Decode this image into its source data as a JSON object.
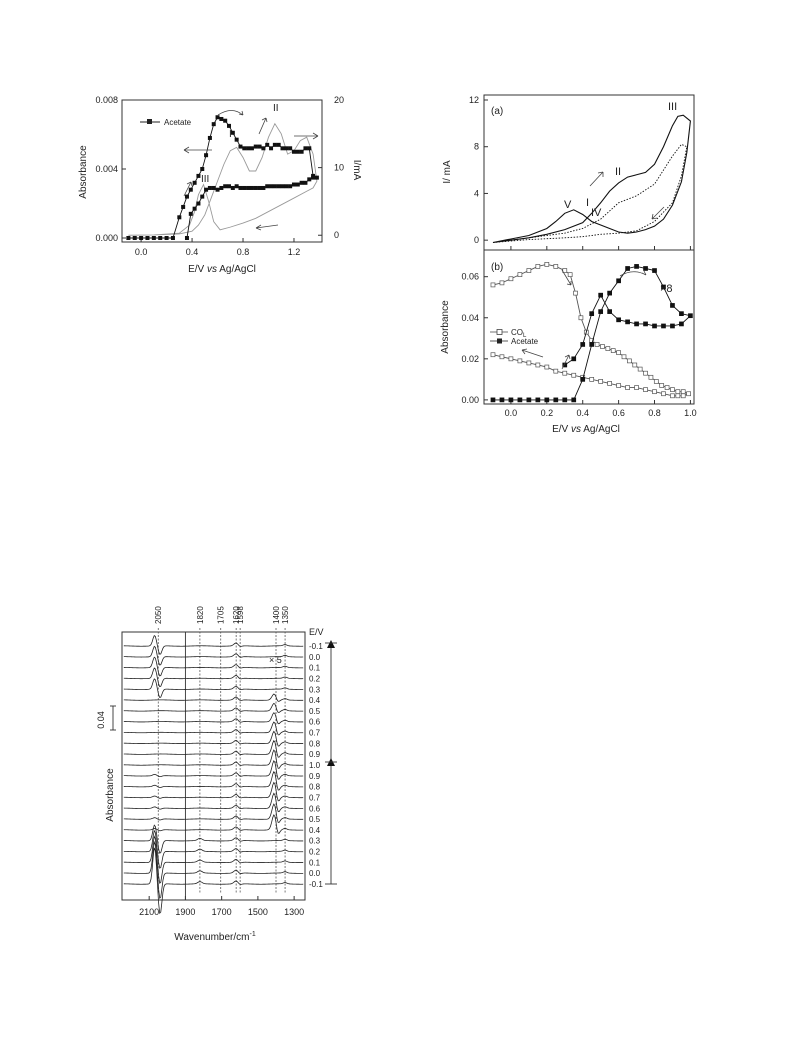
{
  "chart_data": [
    {
      "id": "fig1",
      "type": "line",
      "xlabel_pre": "E/V ",
      "xlabel_em": "vs",
      "xlabel_post": " Ag/AgCl",
      "ylabel": "Absorbance",
      "y2label": "I/mA",
      "xlim": [
        -0.15,
        1.42
      ],
      "ylim": [
        0,
        0.008
      ],
      "y2lim": [
        -1,
        20
      ],
      "xticks": [
        0.0,
        0.4,
        0.8,
        1.2
      ],
      "xticklabels": [
        "0.0",
        "0.4",
        "0.8",
        "1.2"
      ],
      "yticks": [
        0,
        0.004,
        0.008
      ],
      "yticklabels": [
        "0.000",
        "0.004",
        "0.008"
      ],
      "y2ticks": [
        0,
        10,
        20
      ],
      "y2ticklabels": [
        "0",
        "10",
        "20"
      ],
      "legend": "top-left",
      "annotations": [
        "I",
        "II",
        "III"
      ],
      "series": [
        {
          "name": "Acetate",
          "marker": "filled-square",
          "x": [
            -0.1,
            -0.05,
            0.0,
            0.05,
            0.1,
            0.15,
            0.2,
            0.25,
            0.3,
            0.33,
            0.36,
            0.39,
            0.42,
            0.45,
            0.48,
            0.51,
            0.54,
            0.57,
            0.6,
            0.63,
            0.66,
            0.69,
            0.72,
            0.75,
            0.78,
            0.81,
            0.84,
            0.87,
            0.9,
            0.93,
            0.96,
            0.99,
            1.02,
            1.05,
            1.08,
            1.11,
            1.14,
            1.17,
            1.2,
            1.23,
            1.26,
            1.29,
            1.32,
            1.35,
            1.38,
            1.35,
            1.32,
            1.29,
            1.26,
            1.23,
            1.2,
            1.17,
            1.14,
            1.11,
            1.08,
            1.05,
            1.02,
            0.99,
            0.96,
            0.93,
            0.9,
            0.87,
            0.84,
            0.81,
            0.78,
            0.75,
            0.72,
            0.69,
            0.66,
            0.63,
            0.6,
            0.57,
            0.54,
            0.51,
            0.48,
            0.45,
            0.42,
            0.39,
            0.36
          ],
          "y": [
            0,
            0,
            0,
            0,
            0,
            0,
            0,
            0,
            0.0012,
            0.0018,
            0.0024,
            0.0028,
            0.0032,
            0.0036,
            0.004,
            0.0048,
            0.0058,
            0.0066,
            0.007,
            0.0069,
            0.0068,
            0.0065,
            0.0061,
            0.0057,
            0.0053,
            0.0052,
            0.0052,
            0.0052,
            0.0053,
            0.0053,
            0.0052,
            0.0054,
            0.0052,
            0.0054,
            0.0054,
            0.0052,
            0.0052,
            0.0052,
            0.005,
            0.005,
            0.005,
            0.0052,
            0.0052,
            0.0036,
            0.0035,
            0.0035,
            0.0034,
            0.0032,
            0.0032,
            0.0031,
            0.0031,
            0.003,
            0.003,
            0.003,
            0.003,
            0.003,
            0.003,
            0.003,
            0.0029,
            0.0029,
            0.0029,
            0.0029,
            0.0029,
            0.0029,
            0.0029,
            0.003,
            0.0029,
            0.003,
            0.003,
            0.0029,
            0.0028,
            0.0029,
            0.0029,
            0.0028,
            0.0024,
            0.002,
            0.0017,
            0.0014,
            0
          ]
        },
        {
          "name": "",
          "axis": "right",
          "x": [
            -0.1,
            0.1,
            0.3,
            0.4,
            0.45,
            0.5,
            0.55,
            0.6,
            0.65,
            0.7,
            0.75,
            0.8,
            0.85,
            0.9,
            0.95,
            1.0,
            1.05,
            1.1,
            1.15,
            1.2,
            1.25,
            1.3,
            1.35,
            1.38,
            1.35,
            1.3,
            1.2,
            1.1,
            1.0,
            0.9,
            0.8,
            0.7,
            0.62,
            0.57,
            0.53,
            0.49,
            0.45,
            0.42,
            0.38,
            0.3,
            0.1,
            -0.1
          ],
          "y": [
            0,
            0.05,
            0.2,
            0.6,
            1.5,
            3,
            5.5,
            8,
            10.5,
            12.5,
            13,
            11.5,
            9.5,
            9.5,
            11.5,
            14.5,
            16.5,
            15,
            12,
            12.5,
            14,
            14.5,
            12,
            8,
            7,
            6.5,
            5.5,
            4.5,
            3.5,
            2.5,
            1.8,
            1.2,
            0.8,
            2,
            5,
            7.5,
            6,
            3.5,
            1.5,
            0.3,
            0.05,
            0
          ]
        }
      ]
    },
    {
      "id": "fig2a",
      "type": "line",
      "panel_label": "(a)",
      "ylabel": "I/ mA",
      "xlim": [
        -0.15,
        1.02
      ],
      "ylim": [
        -0.5,
        12
      ],
      "xticks": [
        0.0,
        0.2,
        0.4,
        0.6,
        0.8,
        1.0
      ],
      "yticks": [
        0,
        4,
        8,
        12
      ],
      "yticklabels": [
        "0",
        "4",
        "8",
        "12"
      ],
      "annotations": [
        "III",
        "II",
        "I",
        "V",
        "IV"
      ],
      "series": [
        {
          "name": "",
          "style": "solid",
          "x": [
            -0.1,
            0.0,
            0.1,
            0.2,
            0.3,
            0.4,
            0.45,
            0.5,
            0.55,
            0.6,
            0.65,
            0.7,
            0.75,
            0.8,
            0.85,
            0.9,
            0.93,
            0.96,
            1.0,
            0.98,
            0.95,
            0.9,
            0.85,
            0.8,
            0.75,
            0.7,
            0.65,
            0.6,
            0.55,
            0.5,
            0.45,
            0.4,
            0.35,
            0.3,
            0.25,
            0.2,
            0.1,
            0.0,
            -0.1
          ],
          "y": [
            -0.2,
            0,
            0.2,
            0.5,
            0.9,
            1.5,
            2.3,
            3.2,
            4.2,
            4.9,
            5.4,
            5.6,
            5.8,
            6.5,
            8,
            9.8,
            10.6,
            10.7,
            10.2,
            7.5,
            5,
            3,
            1.8,
            1.2,
            0.9,
            0.7,
            0.6,
            0.7,
            1.0,
            1.3,
            1.6,
            2.2,
            2.6,
            2.3,
            1.6,
            1.0,
            0.4,
            0.1,
            -0.2
          ]
        },
        {
          "name": "",
          "style": "dotted",
          "x": [
            -0.1,
            0.1,
            0.3,
            0.4,
            0.5,
            0.55,
            0.6,
            0.7,
            0.8,
            0.9,
            0.95,
            0.98,
            0.95,
            0.9,
            0.8,
            0.7,
            0.6,
            0.5,
            0.4,
            0.3,
            0.1,
            -0.1
          ],
          "y": [
            -0.2,
            0.2,
            0.6,
            1.0,
            1.8,
            2.5,
            3.2,
            3.8,
            4.8,
            7.2,
            8.2,
            8.0,
            5.5,
            3.2,
            1.6,
            0.8,
            0.6,
            0.5,
            0.3,
            0.2,
            0.05,
            -0.2
          ]
        }
      ]
    },
    {
      "id": "fig2b",
      "type": "line",
      "panel_label": "(b)",
      "xlabel_pre": "E/V ",
      "xlabel_em": "vs",
      "xlabel_post": " Ag/AgCl",
      "ylabel": "Absorbance",
      "xlim": [
        -0.15,
        1.02
      ],
      "ylim": [
        -0.002,
        0.073
      ],
      "xticks": [
        0.0,
        0.2,
        0.4,
        0.6,
        0.8,
        1.0
      ],
      "xticklabels": [
        "0.0",
        "0.2",
        "0.4",
        "0.6",
        "0.8",
        "1.0"
      ],
      "yticks": [
        0,
        0.02,
        0.04,
        0.06
      ],
      "yticklabels": [
        "0.00",
        "0.02",
        "0.04",
        "0.06"
      ],
      "legend": "left",
      "annotations": [
        "×8"
      ],
      "series": [
        {
          "name": "CO",
          "name_sub": "L",
          "marker": "open-square",
          "x": [
            -0.1,
            -0.05,
            0.0,
            0.05,
            0.1,
            0.15,
            0.2,
            0.25,
            0.3,
            0.33,
            0.36,
            0.39,
            0.42,
            0.45,
            0.48,
            0.51,
            0.54,
            0.57,
            0.6,
            0.63,
            0.66,
            0.69,
            0.72,
            0.75,
            0.78,
            0.81,
            0.84,
            0.87,
            0.9,
            0.93,
            0.96,
            0.99,
            0.96,
            0.93,
            0.9,
            0.85,
            0.8,
            0.75,
            0.7,
            0.65,
            0.6,
            0.55,
            0.5,
            0.45,
            0.4,
            0.35,
            0.3,
            0.25,
            0.2,
            0.15,
            0.1,
            0.05,
            0.0,
            -0.05,
            -0.1
          ],
          "y": [
            0.056,
            0.057,
            0.059,
            0.061,
            0.063,
            0.065,
            0.066,
            0.065,
            0.063,
            0.061,
            0.052,
            0.04,
            0.033,
            0.029,
            0.027,
            0.026,
            0.025,
            0.024,
            0.023,
            0.021,
            0.019,
            0.017,
            0.015,
            0.013,
            0.011,
            0.009,
            0.007,
            0.006,
            0.005,
            0.004,
            0.004,
            0.003,
            0.002,
            0.002,
            0.002,
            0.003,
            0.004,
            0.005,
            0.006,
            0.006,
            0.007,
            0.008,
            0.009,
            0.01,
            0.011,
            0.012,
            0.013,
            0.014,
            0.016,
            0.017,
            0.018,
            0.019,
            0.02,
            0.021,
            0.022
          ]
        },
        {
          "name": "Acetate",
          "marker": "filled-square",
          "x": [
            -0.1,
            -0.05,
            0.0,
            0.05,
            0.1,
            0.15,
            0.2,
            0.25,
            0.3,
            0.35,
            0.4,
            0.45,
            0.5,
            0.55,
            0.6,
            0.65,
            0.7,
            0.75,
            0.8,
            0.85,
            0.9,
            0.95,
            1.0,
            0.95,
            0.9,
            0.85,
            0.8,
            0.75,
            0.7,
            0.65,
            0.6,
            0.55,
            0.5,
            0.45,
            0.4,
            0.35,
            0.3
          ],
          "y": [
            0,
            0,
            0,
            0,
            0,
            0,
            0,
            0,
            0,
            0,
            0.01,
            0.027,
            0.043,
            0.052,
            0.058,
            0.064,
            0.065,
            0.064,
            0.063,
            0.055,
            0.046,
            0.042,
            0.041,
            0.037,
            0.036,
            0.036,
            0.036,
            0.037,
            0.037,
            0.038,
            0.039,
            0.043,
            0.051,
            0.042,
            0.027,
            0.02,
            0.017
          ]
        }
      ]
    },
    {
      "id": "fig3",
      "type": "line",
      "xlabel": "Wavenumber/cm",
      "xlabel_sup": "-1",
      "ylabel": "Absorbance",
      "scale_bar_label": "0.04",
      "xlim": [
        2250,
        1240
      ],
      "xticks": [
        2100,
        1900,
        1700,
        1500,
        1300
      ],
      "xticklabels": [
        "2100",
        "1900",
        "1700",
        "1500",
        "1300"
      ],
      "peak_labels": [
        {
          "x": 2050,
          "label": "2050"
        },
        {
          "x": 1820,
          "label": "1820"
        },
        {
          "x": 1705,
          "label": "1705"
        },
        {
          "x": 1620,
          "label": "1620"
        },
        {
          "x": 1598,
          "label": "1598"
        },
        {
          "x": 1400,
          "label": "1400"
        },
        {
          "x": 1350,
          "label": "1350"
        }
      ],
      "scale_label": "× 5",
      "potential_header": "E/V",
      "potentials": [
        "-0.1",
        "0.0",
        "0.1",
        "0.2",
        "0.3",
        "0.4",
        "0.5",
        "0.6",
        "0.7",
        "0.8",
        "0.9",
        "1.0",
        "0.9",
        "0.8",
        "0.7",
        "0.6",
        "0.5",
        "0.4",
        "0.3",
        "0.2",
        "0.1",
        "0.0",
        "-0.1"
      ]
    }
  ]
}
